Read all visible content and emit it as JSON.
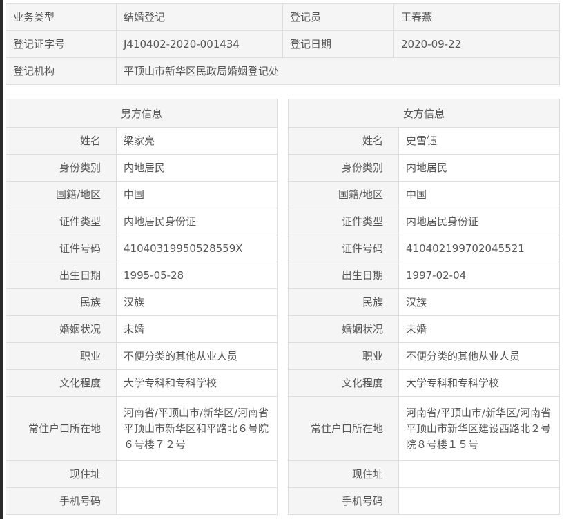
{
  "summary": {
    "business_type_label": "业务类型",
    "business_type": "结婚登记",
    "registrar_label": "登记员",
    "registrar": "王春燕",
    "cert_no_label": "登记证字号",
    "cert_no": "J410402-2020-001434",
    "reg_date_label": "登记日期",
    "reg_date": "2020-09-22",
    "org_label": "登记机构",
    "org": "平顶山市新华区民政局婚姻登记处"
  },
  "male": {
    "title": "男方信息",
    "rows": [
      {
        "label": "姓名",
        "value": "梁家亮"
      },
      {
        "label": "身份类别",
        "value": "内地居民"
      },
      {
        "label": "国籍/地区",
        "value": "中国"
      },
      {
        "label": "证件类型",
        "value": "内地居民身份证"
      },
      {
        "label": "证件号码",
        "value": "41040319950528559X"
      },
      {
        "label": "出生日期",
        "value": "1995-05-28"
      },
      {
        "label": "民族",
        "value": "汉族"
      },
      {
        "label": "婚姻状况",
        "value": "未婚"
      },
      {
        "label": "职业",
        "value": "不便分类的其他从业人员"
      },
      {
        "label": "文化程度",
        "value": "大学专科和专科学校"
      },
      {
        "label": "常住户口所在地",
        "value": "河南省/平顶山市/新华区/河南省平顶山市新华区和平路北６号院６号楼７２号"
      },
      {
        "label": "现住址",
        "value": ""
      },
      {
        "label": "手机号码",
        "value": ""
      }
    ]
  },
  "female": {
    "title": "女方信息",
    "rows": [
      {
        "label": "姓名",
        "value": "史雪钰"
      },
      {
        "label": "身份类别",
        "value": "内地居民"
      },
      {
        "label": "国籍/地区",
        "value": "中国"
      },
      {
        "label": "证件类型",
        "value": "内地居民身份证"
      },
      {
        "label": "证件号码",
        "value": "410402199702045521"
      },
      {
        "label": "出生日期",
        "value": "1997-02-04"
      },
      {
        "label": "民族",
        "value": "汉族"
      },
      {
        "label": "婚姻状况",
        "value": "未婚"
      },
      {
        "label": "职业",
        "value": "不便分类的其他从业人员"
      },
      {
        "label": "文化程度",
        "value": "大学专科和专科学校"
      },
      {
        "label": "常住户口所在地",
        "value": "河南省/平顶山市/新华区/河南省平顶山市新华区建设西路北２号院８号楼１５号"
      },
      {
        "label": "现住址",
        "value": ""
      },
      {
        "label": "手机号码",
        "value": ""
      }
    ]
  }
}
